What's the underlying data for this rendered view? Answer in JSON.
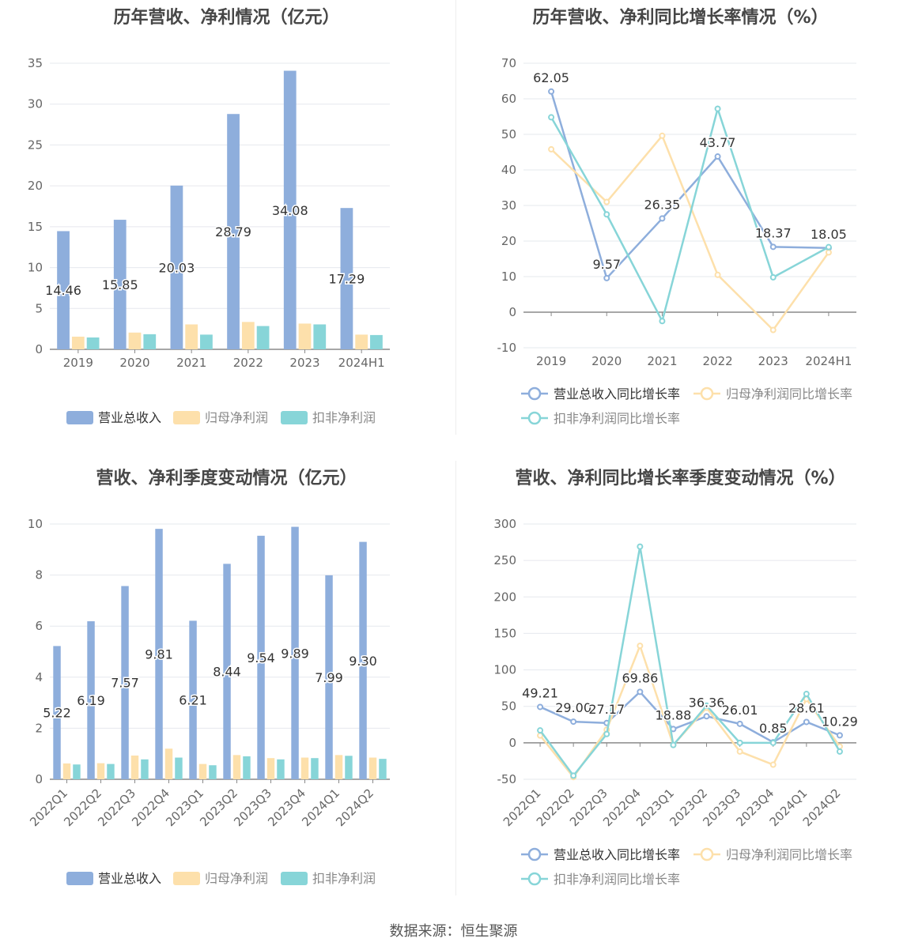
{
  "source": "数据来源：恒生聚源",
  "colors": {
    "revenue": "#8eaedc",
    "net": "#fde0ab",
    "deducted": "#87d5d8",
    "grid": "#e6e8ee",
    "axis": "#8a8a8a",
    "text": "#5a5a5a"
  },
  "chart_data": [
    {
      "type": "bar",
      "title": "历年营收、净利情况（亿元）",
      "categories": [
        "2019",
        "2020",
        "2021",
        "2022",
        "2023",
        "2024H1"
      ],
      "ylim": [
        0,
        35
      ],
      "yticks": [
        0,
        5,
        10,
        15,
        20,
        25,
        30,
        35
      ],
      "grid": true,
      "legend": "bottom",
      "series": [
        {
          "name": "营业总收入",
          "values": [
            14.46,
            15.85,
            20.03,
            28.79,
            34.08,
            17.29
          ],
          "labels": [
            "14.46",
            "15.85",
            "20.03",
            "28.79",
            "34.08",
            "17.29"
          ]
        },
        {
          "name": "归母净利润",
          "values": [
            1.55,
            2.05,
            3.05,
            3.35,
            3.15,
            1.8
          ]
        },
        {
          "name": "扣非净利润",
          "values": [
            1.45,
            1.85,
            1.8,
            2.85,
            3.05,
            1.75
          ]
        }
      ]
    },
    {
      "type": "line",
      "title": "历年营收、净利同比增长率情况（%）",
      "categories": [
        "2019",
        "2020",
        "2021",
        "2022",
        "2023",
        "2024H1"
      ],
      "ylim": [
        -10,
        70
      ],
      "yticks": [
        -10,
        0,
        10,
        20,
        30,
        40,
        50,
        60,
        70
      ],
      "grid": true,
      "legend": "bottom",
      "series": [
        {
          "name": "营业总收入同比增长率",
          "values": [
            62.05,
            9.57,
            26.35,
            43.77,
            18.37,
            18.05
          ],
          "labels": [
            "62.05",
            "9.57",
            "26.35",
            "43.77",
            "18.37",
            "18.05"
          ]
        },
        {
          "name": "归母净利润同比增长率",
          "values": [
            45.8,
            31.0,
            49.6,
            10.5,
            -5.0,
            16.8
          ]
        },
        {
          "name": "扣非净利润同比增长率",
          "values": [
            54.8,
            27.5,
            -2.5,
            57.2,
            9.8,
            18.3
          ]
        }
      ]
    },
    {
      "type": "bar",
      "title": "营收、净利季度变动情况（亿元）",
      "categories": [
        "2022Q1",
        "2022Q2",
        "2022Q3",
        "2022Q4",
        "2023Q1",
        "2023Q2",
        "2023Q3",
        "2023Q4",
        "2024Q1",
        "2024Q2"
      ],
      "ylim": [
        0,
        10
      ],
      "yticks": [
        0,
        2,
        4,
        6,
        8,
        10
      ],
      "grid": true,
      "legend": "bottom",
      "series": [
        {
          "name": "营业总收入",
          "values": [
            5.22,
            6.19,
            7.57,
            9.81,
            6.21,
            8.44,
            9.54,
            9.89,
            7.99,
            9.3
          ],
          "labels": [
            "5.22",
            "6.19",
            "7.57",
            "9.81",
            "6.21",
            "8.44",
            "9.54",
            "9.89",
            "7.99",
            "9.30"
          ]
        },
        {
          "name": "归母净利润",
          "values": [
            0.62,
            0.63,
            0.93,
            1.2,
            0.6,
            0.95,
            0.83,
            0.85,
            0.95,
            0.85
          ]
        },
        {
          "name": "扣非净利润",
          "values": [
            0.58,
            0.6,
            0.78,
            0.85,
            0.55,
            0.9,
            0.78,
            0.83,
            0.92,
            0.8
          ]
        }
      ]
    },
    {
      "type": "line",
      "title": "营收、净利同比增长率季度变动情况（%）",
      "categories": [
        "2022Q1",
        "2022Q2",
        "2022Q3",
        "2022Q4",
        "2023Q1",
        "2023Q2",
        "2023Q3",
        "2023Q4",
        "2024Q1",
        "2024Q2"
      ],
      "ylim": [
        -50,
        300
      ],
      "yticks": [
        -50,
        0,
        50,
        100,
        150,
        200,
        250,
        300
      ],
      "grid": true,
      "legend": "bottom",
      "series": [
        {
          "name": "营业总收入同比增长率",
          "values": [
            49.21,
            29.0,
            27.17,
            69.86,
            18.88,
            36.36,
            26.01,
            0.85,
            28.61,
            10.29
          ],
          "labels": [
            "49.21",
            "29.00",
            "27.17",
            "69.86",
            "18.88",
            "36.36",
            "26.01",
            "0.85",
            "28.61",
            "10.29"
          ]
        },
        {
          "name": "归母净利润同比增长率",
          "values": [
            10,
            -47,
            18,
            133,
            -3,
            48,
            -12,
            -30,
            60,
            -5
          ]
        },
        {
          "name": "扣非净利润同比增长率",
          "values": [
            17,
            -45,
            12,
            269,
            -3,
            51,
            0,
            0,
            67,
            -12
          ]
        }
      ]
    }
  ]
}
